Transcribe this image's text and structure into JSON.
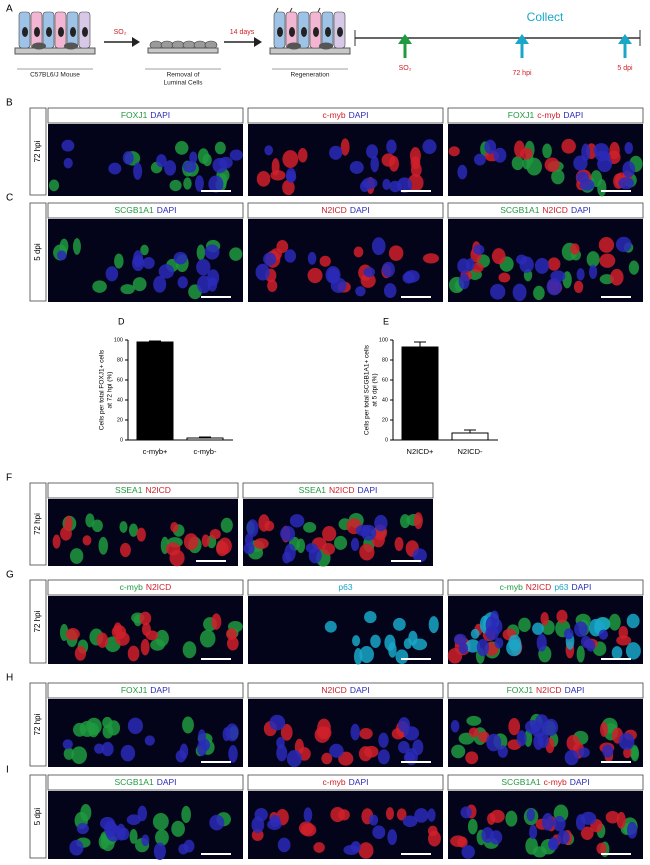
{
  "figure": {
    "panel_a": {
      "letter": "A",
      "step_labels": [
        [
          "C57BL6/J Mouse"
        ],
        [
          "Removal of",
          "Luminal Cells"
        ],
        [
          "Regeneration"
        ]
      ],
      "arrow_labels": [
        "SO₂",
        "14 days"
      ],
      "timeline_title": "Collect",
      "timeline_points": [
        "SO₂",
        "72 hpi",
        "5 dpi"
      ]
    },
    "image_panels": [
      {
        "letter": "B",
        "side_label": "72 hpi",
        "headers": [
          [
            {
              "text": "FOXJ1",
              "color": "#1f9a3f"
            },
            {
              "text": "DAPI",
              "color": "#2a2ab8"
            }
          ],
          [
            {
              "text": "c-myb",
              "color": "#d0202a"
            },
            {
              "text": "DAPI",
              "color": "#2a2ab8"
            }
          ],
          [
            {
              "text": "FOXJ1",
              "color": "#1f9a3f"
            },
            {
              "text": "c-myb",
              "color": "#d0202a"
            },
            {
              "text": "DAPI",
              "color": "#2a2ab8"
            }
          ]
        ]
      },
      {
        "letter": "C",
        "side_label": "5 dpi",
        "headers": [
          [
            {
              "text": "SCGB1A1",
              "color": "#1f9a3f"
            },
            {
              "text": "DAPI",
              "color": "#2a2ab8"
            }
          ],
          [
            {
              "text": "N2ICD",
              "color": "#d0202a"
            },
            {
              "text": "DAPI",
              "color": "#2a2ab8"
            }
          ],
          [
            {
              "text": "SCGB1A1",
              "color": "#1f9a3f"
            },
            {
              "text": "N2ICD",
              "color": "#d0202a"
            },
            {
              "text": "DAPI",
              "color": "#2a2ab8"
            }
          ]
        ]
      },
      {
        "letter": "F",
        "side_label": "72 hpi",
        "headers": [
          [
            {
              "text": "SSEA1",
              "color": "#1f9a3f"
            },
            {
              "text": "N2ICD",
              "color": "#d0202a"
            }
          ],
          [
            {
              "text": "SSEA1",
              "color": "#1f9a3f"
            },
            {
              "text": "N2ICD",
              "color": "#d0202a"
            },
            {
              "text": "DAPI",
              "color": "#2a2ab8"
            }
          ]
        ]
      },
      {
        "letter": "G",
        "side_label": "72 hpi",
        "headers": [
          [
            {
              "text": "c-myb",
              "color": "#1f9a3f"
            },
            {
              "text": "N2ICD",
              "color": "#d0202a"
            }
          ],
          [
            {
              "text": "p63",
              "color": "#19a7c9"
            }
          ],
          [
            {
              "text": "c-myb",
              "color": "#1f9a3f"
            },
            {
              "text": "N2ICD",
              "color": "#d0202a"
            },
            {
              "text": "p63",
              "color": "#19a7c9"
            },
            {
              "text": "DAPI",
              "color": "#2a2ab8"
            }
          ]
        ]
      },
      {
        "letter": "H",
        "side_label": "72 hpi",
        "headers": [
          [
            {
              "text": "FOXJ1",
              "color": "#1f9a3f"
            },
            {
              "text": "DAPI",
              "color": "#2a2ab8"
            }
          ],
          [
            {
              "text": "N2ICD",
              "color": "#d0202a"
            },
            {
              "text": "DAPI",
              "color": "#2a2ab8"
            }
          ],
          [
            {
              "text": "FOXJ1",
              "color": "#1f9a3f"
            },
            {
              "text": "N2ICD",
              "color": "#d0202a"
            },
            {
              "text": "DAPI",
              "color": "#2a2ab8"
            }
          ]
        ]
      },
      {
        "letter": "I",
        "side_label": "5 dpi",
        "headers": [
          [
            {
              "text": "SCGB1A1",
              "color": "#1f9a3f"
            },
            {
              "text": "DAPI",
              "color": "#2a2ab8"
            }
          ],
          [
            {
              "text": "c-myb",
              "color": "#d0202a"
            },
            {
              "text": "DAPI",
              "color": "#2a2ab8"
            }
          ],
          [
            {
              "text": "SCGB1A1",
              "color": "#1f9a3f"
            },
            {
              "text": "c-myb",
              "color": "#d0202a"
            },
            {
              "text": "DAPI",
              "color": "#2a2ab8"
            }
          ]
        ]
      }
    ]
  },
  "chart_data": [
    {
      "type": "bar",
      "label": "D",
      "ylabel": [
        "Cells per total FOXJ1+ cells",
        "at 72 hpi (%)"
      ],
      "categories": [
        "c-myb+",
        "c-myb-"
      ],
      "values": [
        98,
        2
      ],
      "errors": [
        1,
        1
      ],
      "colors": [
        "#000000",
        "#ffffff"
      ],
      "ylim": [
        0,
        100
      ],
      "yticks": [
        0,
        20,
        40,
        60,
        80,
        100
      ]
    },
    {
      "type": "bar",
      "label": "E",
      "ylabel": [
        "Cells per total SCGB1A1+ cells",
        "at 5 dpi (%)"
      ],
      "categories": [
        "N2ICD+",
        "N2ICD-"
      ],
      "values": [
        93,
        7
      ],
      "errors": [
        5,
        3
      ],
      "colors": [
        "#000000",
        "#ffffff"
      ],
      "ylim": [
        0,
        100
      ],
      "yticks": [
        0,
        20,
        40,
        60,
        80,
        100
      ]
    }
  ]
}
